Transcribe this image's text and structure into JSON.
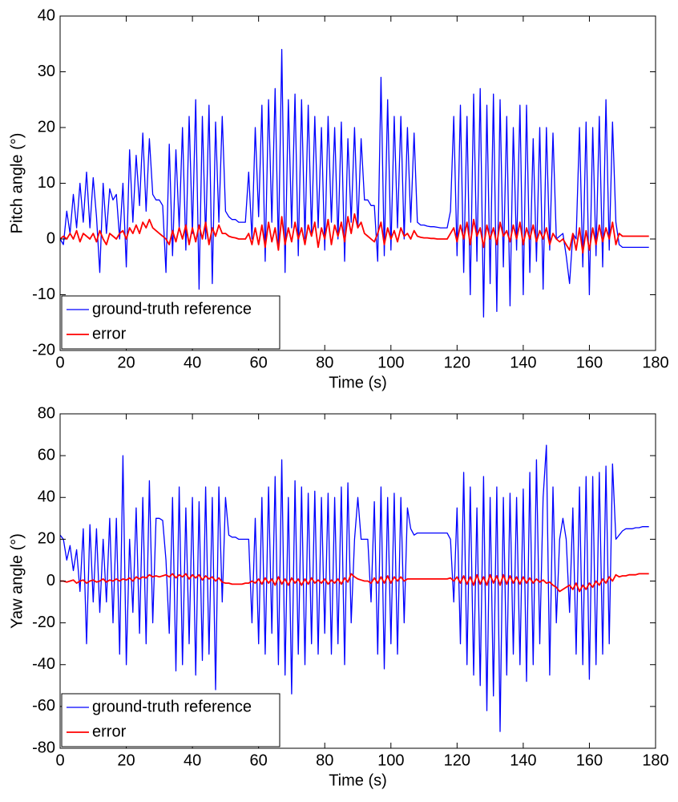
{
  "chart_data": [
    {
      "type": "line",
      "xlabel": "Time (s)",
      "ylabel": "Pitch angle (°)",
      "legend": "lower left",
      "xlim": [
        0,
        180
      ],
      "ylim": [
        -20,
        40
      ],
      "xticks": [
        0,
        20,
        40,
        60,
        80,
        100,
        120,
        140,
        160,
        180
      ],
      "yticks": [
        -20,
        -10,
        0,
        10,
        20,
        30,
        40
      ],
      "x": [
        0,
        1,
        2,
        3,
        4,
        5,
        6,
        7,
        8,
        9,
        10,
        11,
        12,
        13,
        14,
        15,
        16,
        17,
        18,
        19,
        20,
        21,
        22,
        23,
        24,
        25,
        26,
        27,
        28,
        29,
        30,
        31,
        32,
        33,
        34,
        35,
        36,
        37,
        38,
        39,
        40,
        41,
        42,
        43,
        44,
        45,
        46,
        47,
        48,
        49,
        50,
        51,
        52,
        53,
        54,
        55,
        56,
        57,
        58,
        59,
        60,
        61,
        62,
        63,
        64,
        65,
        66,
        67,
        68,
        69,
        70,
        71,
        72,
        73,
        74,
        75,
        76,
        77,
        78,
        79,
        80,
        81,
        82,
        83,
        84,
        85,
        86,
        87,
        88,
        89,
        90,
        91,
        92,
        93,
        94,
        95,
        96,
        97,
        98,
        99,
        100,
        101,
        102,
        103,
        104,
        105,
        106,
        107,
        108,
        109,
        110,
        111,
        112,
        113,
        114,
        115,
        116,
        117,
        118,
        119,
        120,
        121,
        122,
        123,
        124,
        125,
        126,
        127,
        128,
        129,
        130,
        131,
        132,
        133,
        134,
        135,
        136,
        137,
        138,
        139,
        140,
        141,
        142,
        143,
        144,
        145,
        146,
        147,
        148,
        149,
        150,
        151,
        152,
        153,
        154,
        155,
        156,
        157,
        158,
        159,
        160,
        161,
        162,
        163,
        164,
        165,
        166,
        167,
        168,
        169,
        170,
        171,
        172,
        173,
        174,
        175,
        176,
        177,
        178
      ],
      "series": [
        {
          "name": "ground-truth reference",
          "color": "#0000ff",
          "values": [
            0,
            -1,
            5,
            1,
            8,
            2,
            10,
            3,
            12,
            2,
            11,
            4,
            -6,
            10,
            1,
            9,
            7,
            8,
            0,
            10,
            -5,
            16,
            3,
            15,
            6,
            19,
            5,
            18,
            8,
            7,
            7,
            6,
            -6,
            17,
            -3,
            16,
            2,
            20,
            -2,
            22,
            1,
            25,
            -9,
            22,
            0,
            24,
            -8,
            21,
            3,
            22,
            5,
            4,
            3.5,
            3.5,
            3,
            3,
            3,
            12,
            0,
            20,
            4,
            24,
            -4,
            25,
            3,
            27,
            -2,
            34,
            -6,
            25,
            2,
            26,
            -3,
            25,
            0,
            24,
            1,
            22,
            2,
            20,
            -2,
            22,
            3,
            20,
            0,
            21,
            -4,
            18,
            3,
            20,
            2,
            18,
            7,
            7,
            6,
            6,
            -4,
            29,
            -3,
            25,
            -2,
            22,
            2,
            22,
            0,
            20,
            3,
            19,
            3,
            2.5,
            2.5,
            2.3,
            2.2,
            2.2,
            2.1,
            2,
            2,
            2,
            5,
            22,
            -3,
            24,
            -6,
            22,
            -10,
            26,
            -4,
            27,
            -14,
            24,
            -8,
            26,
            -13,
            25,
            -5,
            22,
            -12,
            20,
            -2,
            24,
            -10,
            24,
            -6,
            18,
            -4,
            20,
            -9,
            20,
            -2,
            19,
            0,
            0.5,
            1,
            -3,
            -8,
            1,
            0,
            20,
            -5,
            21,
            -10,
            20,
            -3,
            22,
            -5,
            25,
            -2,
            21,
            3,
            -1,
            -1.5,
            -1.5,
            -1.5,
            -1.5,
            -1.5,
            -1.5,
            -1.5,
            -1.5,
            -1.5
          ]
        },
        {
          "name": "error",
          "color": "#ff0000",
          "values": [
            0,
            0.5,
            0,
            1,
            0,
            1.5,
            -0.5,
            1,
            0.5,
            0,
            1,
            -0.5,
            1.5,
            0,
            -1,
            1,
            0.5,
            0,
            1,
            1.5,
            0,
            2,
            1,
            2.5,
            1,
            3,
            2,
            3.5,
            2,
            1.5,
            1,
            0.5,
            0,
            -1,
            1.5,
            -0.5,
            2,
            0,
            2.5,
            -1,
            2,
            -0.5,
            2.5,
            0,
            3,
            -1,
            2,
            0.5,
            2.5,
            1,
            1,
            0.5,
            0.3,
            0.2,
            0,
            0,
            0,
            1,
            -1,
            2,
            -1,
            2.5,
            -1.5,
            3,
            -0.5,
            2,
            -2,
            4,
            -1,
            2,
            -0.5,
            3,
            0,
            2,
            -1,
            2.5,
            0.5,
            3,
            -1.5,
            2,
            0,
            3.5,
            -1,
            2.5,
            0.5,
            3,
            -0.5,
            4,
            1,
            4.5,
            2,
            3,
            1,
            0.5,
            0,
            -0.5,
            1,
            3,
            -1,
            2,
            0,
            1.5,
            -0.5,
            2,
            0.5,
            1,
            0,
            1.5,
            0.5,
            0.3,
            0.2,
            0.2,
            0.1,
            0.1,
            0,
            0,
            0,
            0,
            1,
            2,
            -0.5,
            2.5,
            0,
            3,
            -1,
            3.5,
            0.5,
            2,
            -1.5,
            2.5,
            0,
            2,
            -1,
            3,
            0.5,
            1.5,
            -0.5,
            2.5,
            0,
            3,
            -1,
            2,
            0,
            2.5,
            -0.5,
            1.5,
            0,
            2,
            -1,
            1,
            0,
            -0.5,
            0,
            -1,
            -2,
            1,
            -2,
            2,
            -2.5,
            1.5,
            -2,
            2,
            -1,
            2.5,
            -0.5,
            2,
            0,
            3,
            -1,
            1,
            0.5,
            0.5,
            0.5,
            0.5,
            0.5,
            0.5,
            0.5,
            0.5,
            0.5
          ]
        }
      ]
    },
    {
      "type": "line",
      "xlabel": "Time (s)",
      "ylabel": "Yaw angle (°)",
      "legend": "lower left",
      "xlim": [
        0,
        180
      ],
      "ylim": [
        -80,
        80
      ],
      "xticks": [
        0,
        20,
        40,
        60,
        80,
        100,
        120,
        140,
        160,
        180
      ],
      "yticks": [
        -80,
        -60,
        -40,
        -20,
        0,
        20,
        40,
        60,
        80
      ],
      "x": [
        0,
        1,
        2,
        3,
        4,
        5,
        6,
        7,
        8,
        9,
        10,
        11,
        12,
        13,
        14,
        15,
        16,
        17,
        18,
        19,
        20,
        21,
        22,
        23,
        24,
        25,
        26,
        27,
        28,
        29,
        30,
        31,
        32,
        33,
        34,
        35,
        36,
        37,
        38,
        39,
        40,
        41,
        42,
        43,
        44,
        45,
        46,
        47,
        48,
        49,
        50,
        51,
        52,
        53,
        54,
        55,
        56,
        57,
        58,
        59,
        60,
        61,
        62,
        63,
        64,
        65,
        66,
        67,
        68,
        69,
        70,
        71,
        72,
        73,
        74,
        75,
        76,
        77,
        78,
        79,
        80,
        81,
        82,
        83,
        84,
        85,
        86,
        87,
        88,
        89,
        90,
        91,
        92,
        93,
        94,
        95,
        96,
        97,
        98,
        99,
        100,
        101,
        102,
        103,
        104,
        105,
        106,
        107,
        108,
        109,
        110,
        111,
        112,
        113,
        114,
        115,
        116,
        117,
        118,
        119,
        120,
        121,
        122,
        123,
        124,
        125,
        126,
        127,
        128,
        129,
        130,
        131,
        132,
        133,
        134,
        135,
        136,
        137,
        138,
        139,
        140,
        141,
        142,
        143,
        144,
        145,
        146,
        147,
        148,
        149,
        150,
        151,
        152,
        153,
        154,
        155,
        156,
        157,
        158,
        159,
        160,
        161,
        162,
        163,
        164,
        165,
        166,
        167,
        168,
        169,
        170,
        171,
        172,
        173,
        174,
        175,
        176,
        177,
        178
      ],
      "series": [
        {
          "name": "ground-truth reference",
          "color": "#0000ff",
          "values": [
            22,
            20,
            10,
            17,
            5,
            15,
            -5,
            25,
            -30,
            27,
            -10,
            25,
            -15,
            20,
            -10,
            30,
            -20,
            30,
            -35,
            60,
            -40,
            20,
            -15,
            35,
            -25,
            40,
            -30,
            48,
            -20,
            30,
            30,
            29,
            10,
            -25,
            40,
            -43,
            45,
            -40,
            35,
            -30,
            40,
            -45,
            38,
            -38,
            45,
            -35,
            40,
            -52,
            45,
            -10,
            40,
            22,
            21,
            21,
            20,
            20,
            20,
            20,
            -20,
            30,
            -30,
            40,
            -35,
            45,
            -25,
            50,
            -40,
            58,
            -45,
            40,
            -54,
            48,
            -35,
            45,
            -40,
            42,
            -30,
            43,
            -35,
            40,
            -25,
            42,
            -35,
            40,
            -30,
            45,
            -40,
            47,
            -20,
            20,
            40,
            20,
            20,
            20,
            -10,
            38,
            -35,
            45,
            -42,
            40,
            -30,
            42,
            -35,
            40,
            -20,
            35,
            25,
            22,
            23,
            23,
            23,
            23,
            23,
            23,
            23,
            23,
            23,
            23,
            20,
            -10,
            35,
            -30,
            52,
            -40,
            45,
            -45,
            35,
            -50,
            50,
            -62,
            40,
            -55,
            45,
            -72,
            40,
            -45,
            42,
            -35,
            40,
            -40,
            44,
            -48,
            52,
            -40,
            58,
            -30,
            40,
            65,
            -45,
            45,
            -20,
            20,
            30,
            20,
            -15,
            35,
            -35,
            45,
            -40,
            50,
            -47,
            50,
            -40,
            52,
            -35,
            55,
            -30,
            56,
            20,
            22,
            24,
            25,
            25,
            25,
            25.5,
            25.5,
            26,
            26,
            26
          ]
        },
        {
          "name": "error",
          "color": "#ff0000",
          "values": [
            0,
            0,
            -0.5,
            0,
            0.5,
            -1,
            0,
            0.5,
            -1,
            0,
            0.5,
            -0.5,
            0,
            1,
            -0.5,
            0.5,
            0,
            1,
            0,
            1,
            0.5,
            1.5,
            0,
            2,
            1,
            2,
            1.5,
            3,
            2,
            2.5,
            2,
            2.5,
            3,
            2,
            3.5,
            1.5,
            3,
            2,
            3.5,
            1,
            3,
            1.5,
            3,
            0.5,
            2.5,
            1,
            2,
            0,
            1.5,
            -0.5,
            -1,
            -1,
            -1.5,
            -1.5,
            -1.5,
            -1.5,
            -1,
            -1,
            0,
            -1,
            1,
            -1.5,
            1.5,
            -1,
            1,
            -2,
            2,
            -1.5,
            1,
            -2,
            1.5,
            -1,
            1,
            -2,
            1,
            -1.5,
            1.5,
            -1,
            0.5,
            -1,
            1,
            -1.5,
            0.5,
            -1,
            1,
            -1.5,
            1.5,
            -0.5,
            3.5,
            2,
            1,
            0.5,
            0,
            0,
            -1,
            1.5,
            -1,
            2,
            -1,
            2.5,
            -1,
            2,
            0,
            2,
            0,
            1,
            1,
            1,
            1,
            1,
            1,
            1,
            1,
            1,
            1,
            1,
            1,
            1,
            1.5,
            0,
            2,
            -1,
            2.5,
            -1.5,
            2,
            -2,
            3,
            -1.5,
            2,
            -2,
            3,
            -1,
            2.5,
            -2,
            3,
            -1.5,
            2.5,
            -1,
            2,
            -1.5,
            2,
            -1,
            1.5,
            -1,
            1,
            -0.5,
            0.5,
            -1,
            -0.5,
            -2,
            -3,
            -5,
            -4,
            -3,
            -2,
            -4,
            -1,
            -5,
            -2,
            -4,
            -1,
            -3,
            0,
            -2,
            1,
            -1,
            2,
            0,
            3,
            2,
            2.5,
            2.5,
            3,
            3,
            3,
            3.5,
            3.5,
            3.5,
            3.5
          ]
        }
      ]
    }
  ]
}
